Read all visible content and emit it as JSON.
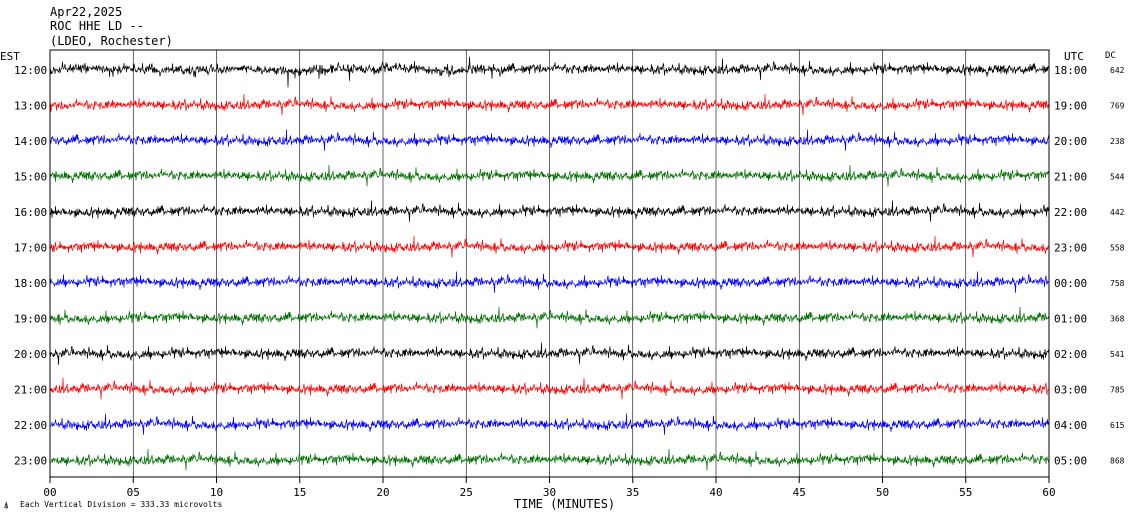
{
  "header": {
    "date": "Apr22,2025",
    "station": "ROC HHE LD --",
    "network": "(LDEO, Rochester)"
  },
  "labels": {
    "left_zone": "EST",
    "right_zone": "UTC",
    "dc_header": "DC",
    "x_axis_title": "TIME (MINUTES)",
    "scale_note": "Each Vertical Division =  333.33 microvolts"
  },
  "colors": [
    "#000000",
    "#ff0000",
    "#0000ff",
    "#007000"
  ],
  "chart_data": {
    "type": "line",
    "title": "ROC HHE LD --",
    "xlabel": "TIME (MINUTES)",
    "ylabel": "",
    "x_range": [
      0,
      60
    ],
    "x_ticks": [
      "00",
      "05",
      "10",
      "15",
      "20",
      "25",
      "30",
      "35",
      "40",
      "45",
      "50",
      "55",
      "60"
    ],
    "rows": [
      {
        "est": "12:00",
        "utc": "18:00",
        "dc": "642"
      },
      {
        "est": "13:00",
        "utc": "19:00",
        "dc": "769"
      },
      {
        "est": "14:00",
        "utc": "20:00",
        "dc": "238"
      },
      {
        "est": "15:00",
        "utc": "21:00",
        "dc": "544"
      },
      {
        "est": "16:00",
        "utc": "22:00",
        "dc": "442"
      },
      {
        "est": "17:00",
        "utc": "23:00",
        "dc": "558"
      },
      {
        "est": "18:00",
        "utc": "00:00",
        "dc": "758"
      },
      {
        "est": "19:00",
        "utc": "01:00",
        "dc": "368"
      },
      {
        "est": "20:00",
        "utc": "02:00",
        "dc": "541"
      },
      {
        "est": "21:00",
        "utc": "03:00",
        "dc": "785"
      },
      {
        "est": "22:00",
        "utc": "04:00",
        "dc": "615"
      },
      {
        "est": "23:00",
        "utc": "05:00",
        "dc": "868"
      }
    ]
  }
}
